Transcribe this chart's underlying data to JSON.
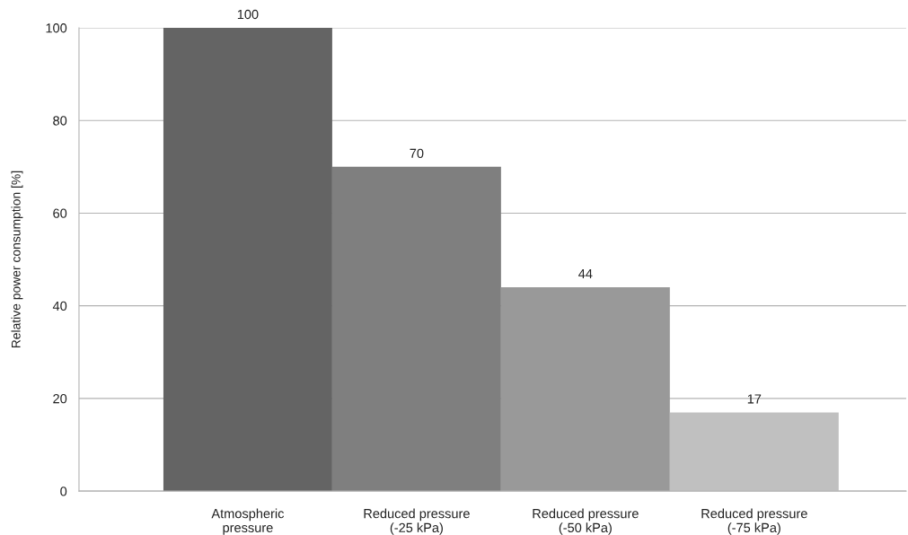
{
  "chart_data": {
    "type": "bar",
    "categories": [
      "Atmospheric\npressure",
      "Reduced pressure\n(-25 kPa)",
      "Reduced pressure\n(-50 kPa)",
      "Reduced pressure\n(-75 kPa)"
    ],
    "values": [
      100,
      70,
      44,
      17
    ],
    "colors": [
      "#646464",
      "#7f7f7f",
      "#999999",
      "#c0c0c0"
    ],
    "ylabel": "Relative power consumption [%]",
    "ylim": [
      0,
      100
    ],
    "yticks": [
      0,
      20,
      40,
      60,
      80,
      100
    ],
    "grid": "y",
    "data_labels": true
  }
}
